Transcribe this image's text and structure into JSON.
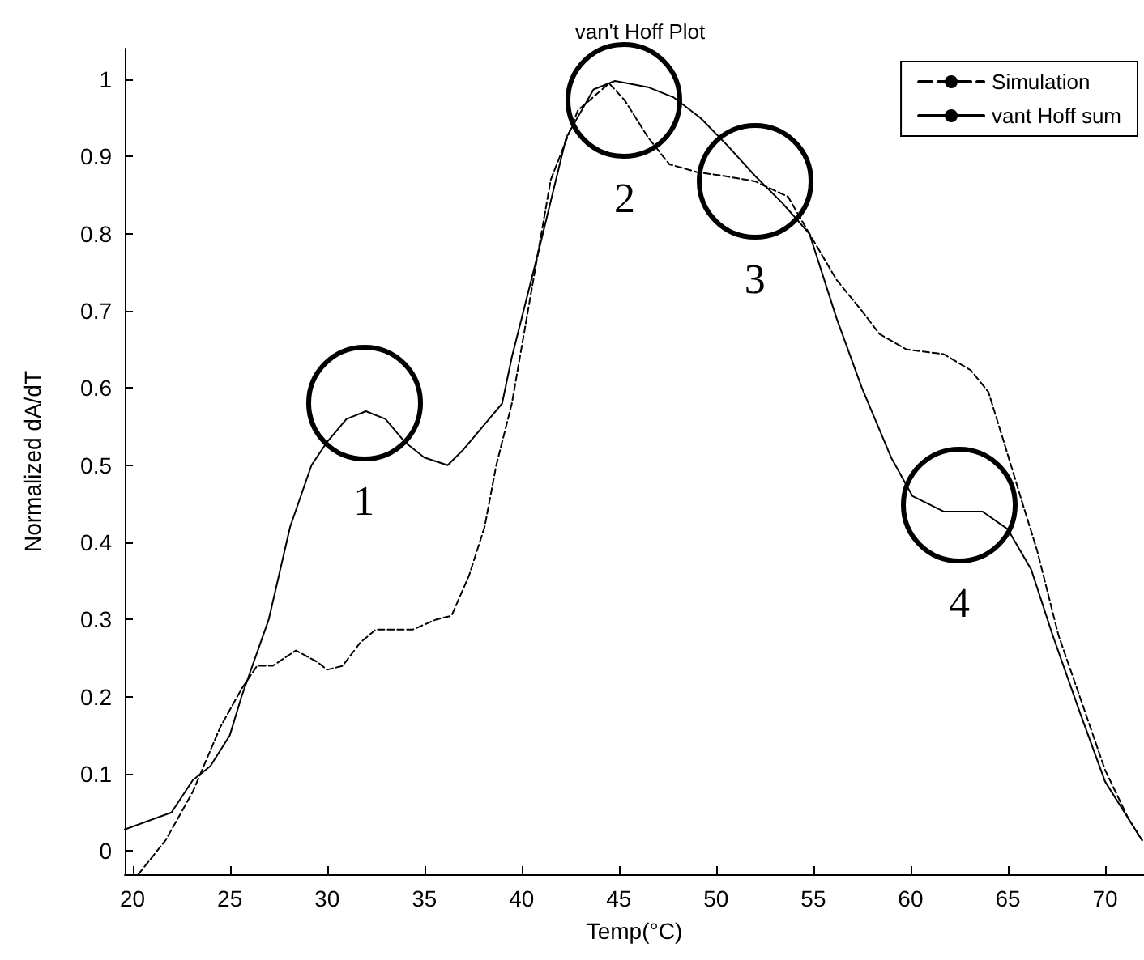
{
  "chart_data": {
    "type": "line",
    "title": "van't Hoff Plot",
    "xlabel": "Temp(°C)",
    "ylabel": "Normalized dA/dT",
    "xlim": [
      19.6,
      72
    ],
    "xticks": [
      20,
      25,
      30,
      35,
      40,
      45,
      50,
      55,
      60,
      65,
      70
    ],
    "ylim": [
      -0.03,
      1.04
    ],
    "yticks": [
      0,
      0.1,
      0.2,
      0.3,
      0.4,
      0.5,
      0.6,
      0.7,
      0.8,
      0.9,
      1
    ],
    "grid": false,
    "legend": "top right",
    "marker": "none",
    "series": [
      {
        "name": "Simulation",
        "color": "#000000",
        "line_style": "dashed",
        "x": [
          20.3,
          21.7,
          23.1,
          24.5,
          25.6,
          26.4,
          27.2,
          28.4,
          29.5,
          30,
          30.8,
          31.7,
          32.5,
          34.4,
          35.6,
          36.4,
          37.3,
          38.1,
          38.7,
          38.9,
          39.5,
          41.5,
          42.9,
          44.5,
          45.3,
          46.5,
          47.6,
          49,
          50.4,
          52,
          53.7,
          54.8,
          56.2,
          57.5,
          58.4,
          59.8,
          61.7,
          63.1,
          64,
          64.8,
          65.7,
          66.5,
          67.6,
          68.7,
          70,
          71.2,
          71.9
        ],
        "values": [
          -0.03,
          0.014,
          0.077,
          0.16,
          0.21,
          0.24,
          0.24,
          0.26,
          0.245,
          0.235,
          0.24,
          0.27,
          0.287,
          0.287,
          0.3,
          0.305,
          0.357,
          0.42,
          0.5,
          0.52,
          0.58,
          0.87,
          0.96,
          0.995,
          0.973,
          0.925,
          0.89,
          0.88,
          0.875,
          0.868,
          0.848,
          0.8,
          0.74,
          0.7,
          0.67,
          0.65,
          0.644,
          0.623,
          0.595,
          0.53,
          0.455,
          0.39,
          0.28,
          0.2,
          0.105,
          0.042,
          0.014
        ]
      },
      {
        "name": "vant Hoff sum",
        "color": "#000000",
        "line_style": "solid",
        "x": [
          19.6,
          22,
          23.1,
          24,
          25,
          25.6,
          27,
          28.1,
          29.2,
          30,
          31,
          32,
          33,
          34,
          35,
          36.2,
          37,
          38,
          39,
          39.5,
          40.9,
          42.3,
          43.7,
          44.8,
          46.5,
          47.8,
          49.2,
          50.6,
          52,
          53.4,
          54.8,
          56.2,
          57.5,
          59,
          60.1,
          61.7,
          63.7,
          65,
          66.2,
          67.3,
          68.7,
          70,
          71.9
        ],
        "values": [
          0.028,
          0.05,
          0.092,
          0.11,
          0.15,
          0.2,
          0.3,
          0.42,
          0.5,
          0.53,
          0.56,
          0.57,
          0.56,
          0.53,
          0.51,
          0.5,
          0.52,
          0.55,
          0.58,
          0.64,
          0.78,
          0.925,
          0.987,
          0.998,
          0.99,
          0.977,
          0.95,
          0.914,
          0.875,
          0.84,
          0.8,
          0.69,
          0.6,
          0.51,
          0.46,
          0.44,
          0.44,
          0.417,
          0.365,
          0.28,
          0.18,
          0.09,
          0.014
        ]
      }
    ],
    "annotations": [
      {
        "text": "1",
        "x": 31.9,
        "y": 0.58
      },
      {
        "text": "2",
        "x": 45.3,
        "y": 0.973
      },
      {
        "text": "3",
        "x": 52,
        "y": 0.868
      },
      {
        "text": "4",
        "x": 62.5,
        "y": 0.449
      }
    ]
  }
}
